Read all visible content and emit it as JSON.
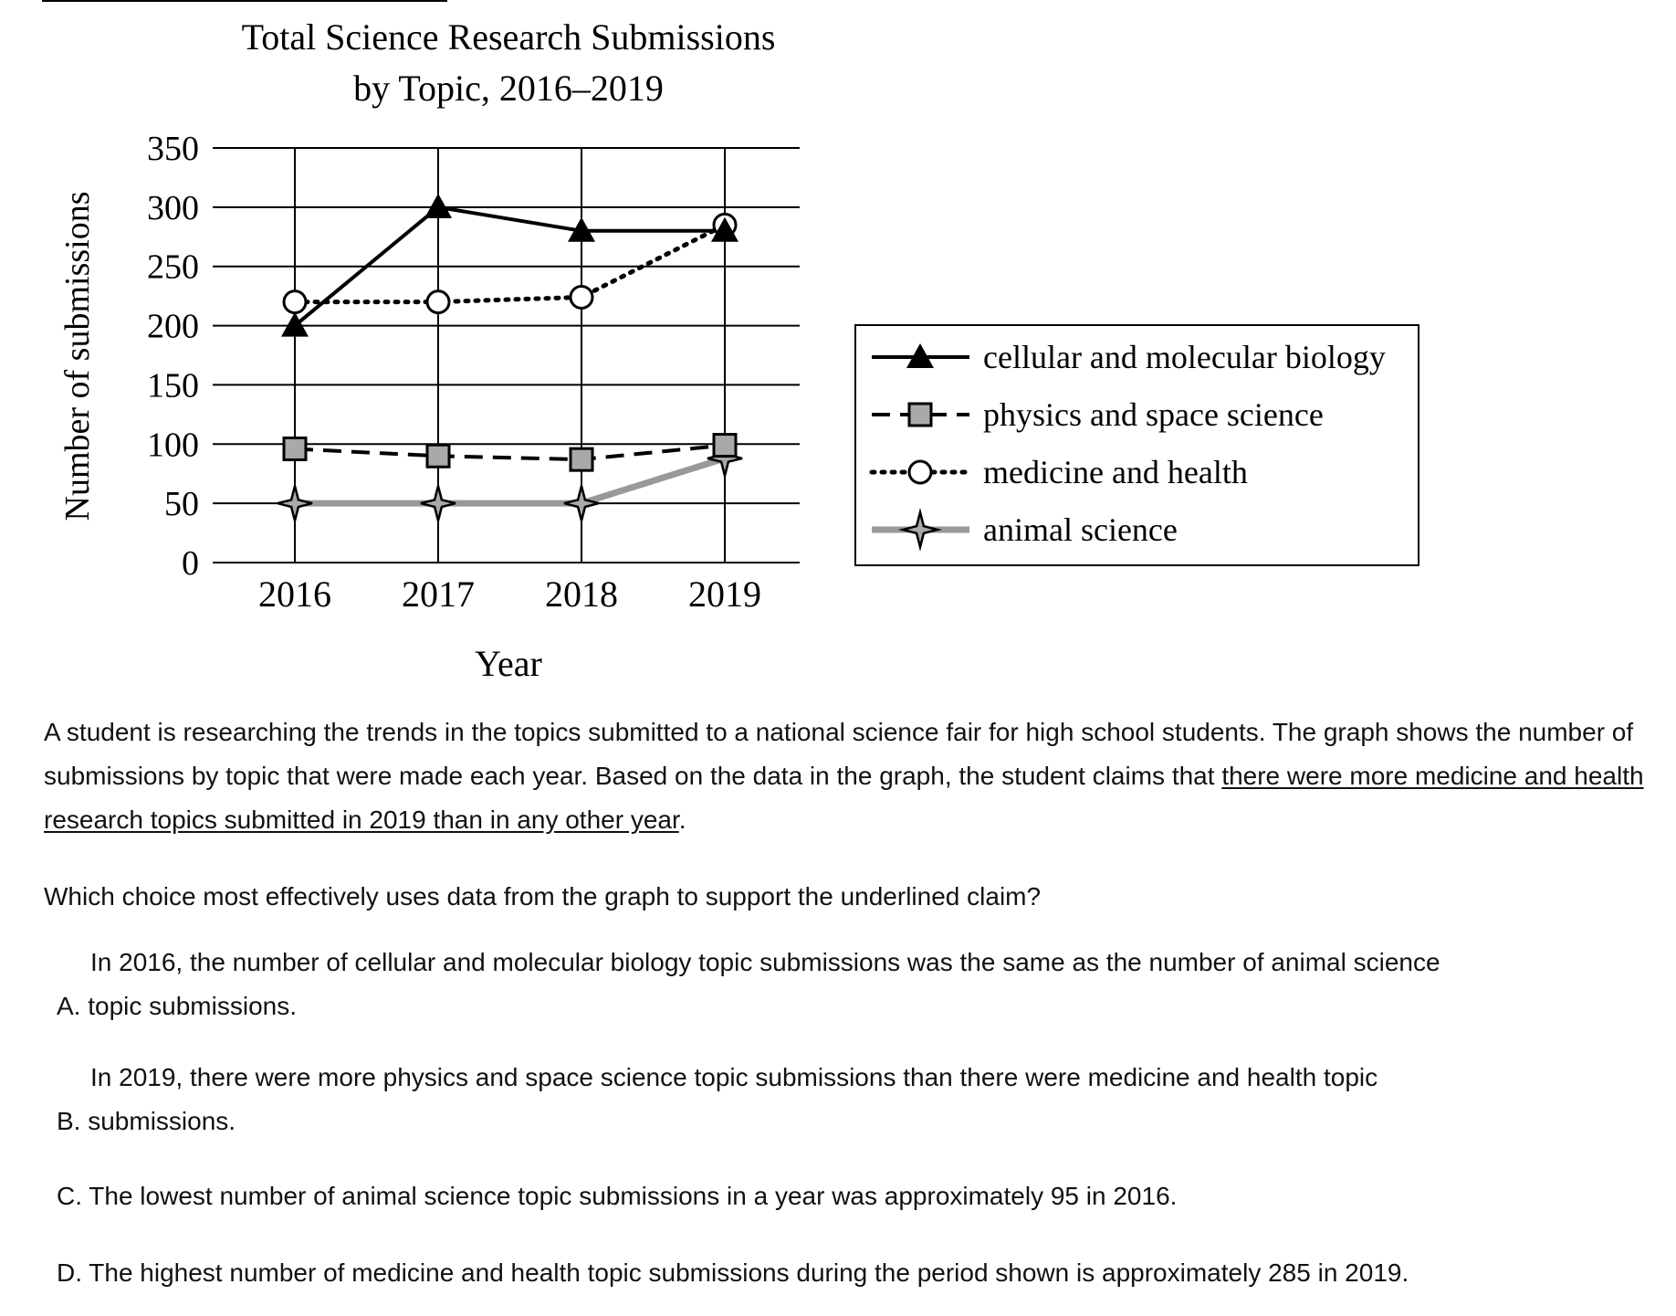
{
  "chart_data": {
    "type": "line",
    "title": "Total Science Research Submissions",
    "subtitle": "by Topic, 2016–2019",
    "xlabel": "Year",
    "ylabel": "Number of submissions",
    "categories": [
      "2016",
      "2017",
      "2018",
      "2019"
    ],
    "yticks": [
      "0",
      "50",
      "100",
      "150",
      "200",
      "250",
      "300",
      "350"
    ],
    "ylim": [
      0,
      350
    ],
    "grid": true,
    "legend_position": "right",
    "series": [
      {
        "name": "cellular and molecular biology",
        "values": [
          200,
          300,
          280,
          280
        ],
        "style": "solid",
        "marker": "triangle",
        "color": "#000000"
      },
      {
        "name": "physics and space science",
        "values": [
          96,
          90,
          87,
          99
        ],
        "style": "dashed",
        "marker": "square",
        "color": "#000000"
      },
      {
        "name": "medicine and health",
        "values": [
          220,
          220,
          224,
          285
        ],
        "style": "dotted",
        "marker": "circle",
        "color": "#000000"
      },
      {
        "name": "animal science",
        "values": [
          50,
          50,
          50,
          88
        ],
        "style": "solid",
        "marker": "star",
        "color": "#999999"
      }
    ]
  },
  "passage": {
    "intro": "A student is researching the trends in the topics submitted to a national science fair for high school students. The graph shows the number of submissions by topic that were made each year. Based on the data in the graph, the student claims that ",
    "claim": "there were more medicine and health research topics submitted in 2019 than in any other year",
    "end": "."
  },
  "question": "Which choice most effectively uses data from the graph to support the underlined claim?",
  "choices": {
    "a": {
      "line1": "In 2016, the number of cellular and molecular biology topic submissions was the same as the number of animal science",
      "line2": "A. topic submissions."
    },
    "b": {
      "line1": "In 2019, there were more physics and space science topic submissions than there were medicine and health topic",
      "line2": "B. submissions."
    },
    "c": {
      "text": "C. The lowest number of animal science topic submissions in a year was approximately 95 in 2016."
    },
    "d": {
      "text": "D. The highest number of medicine and health topic submissions during the period shown is approximately 285 in 2019."
    }
  }
}
